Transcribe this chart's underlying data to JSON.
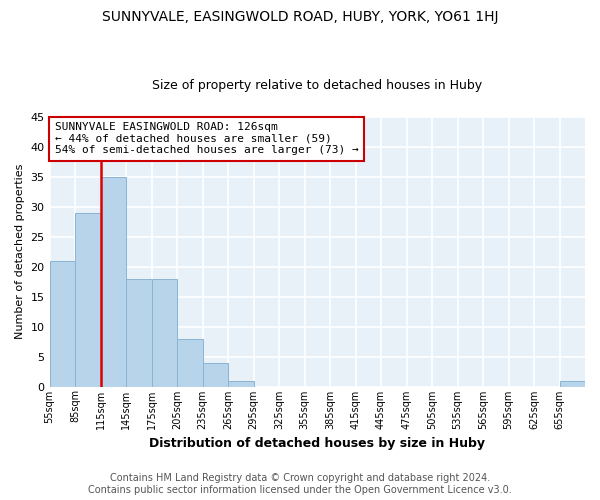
{
  "title": "SUNNYVALE, EASINGWOLD ROAD, HUBY, YORK, YO61 1HJ",
  "subtitle": "Size of property relative to detached houses in Huby",
  "xlabel": "Distribution of detached houses by size in Huby",
  "ylabel": "Number of detached properties",
  "bar_color": "#b8d4ea",
  "bar_edge_color": "#8ab4d4",
  "bins": [
    55,
    85,
    115,
    145,
    175,
    205,
    235,
    265,
    295,
    325,
    355,
    385,
    415,
    445,
    475,
    505,
    535,
    565,
    595,
    625,
    655
  ],
  "bin_labels": [
    "55sqm",
    "85sqm",
    "115sqm",
    "145sqm",
    "175sqm",
    "205sqm",
    "235sqm",
    "265sqm",
    "295sqm",
    "325sqm",
    "355sqm",
    "385sqm",
    "415sqm",
    "445sqm",
    "475sqm",
    "505sqm",
    "535sqm",
    "565sqm",
    "595sqm",
    "625sqm",
    "655sqm"
  ],
  "counts": [
    21,
    29,
    35,
    18,
    18,
    8,
    4,
    1,
    0,
    0,
    0,
    0,
    0,
    0,
    0,
    0,
    0,
    0,
    0,
    0,
    1
  ],
  "ylim": [
    0,
    45
  ],
  "yticks": [
    0,
    5,
    10,
    15,
    20,
    25,
    30,
    35,
    40,
    45
  ],
  "vline_x": 115,
  "vline_color": "#dd0000",
  "annotation_line1": "SUNNYVALE EASINGWOLD ROAD: 126sqm",
  "annotation_line2": "← 44% of detached houses are smaller (59)",
  "annotation_line3": "54% of semi-detached houses are larger (73) →",
  "footer_line1": "Contains HM Land Registry data © Crown copyright and database right 2024.",
  "footer_line2": "Contains public sector information licensed under the Open Government Licence v3.0.",
  "bg_color": "#ffffff",
  "plot_bg_color": "#e8f0f8",
  "grid_color": "#ffffff",
  "title_fontsize": 10,
  "subtitle_fontsize": 9,
  "annotation_fontsize": 8,
  "footer_fontsize": 7,
  "ylabel_fontsize": 8,
  "xlabel_fontsize": 9
}
